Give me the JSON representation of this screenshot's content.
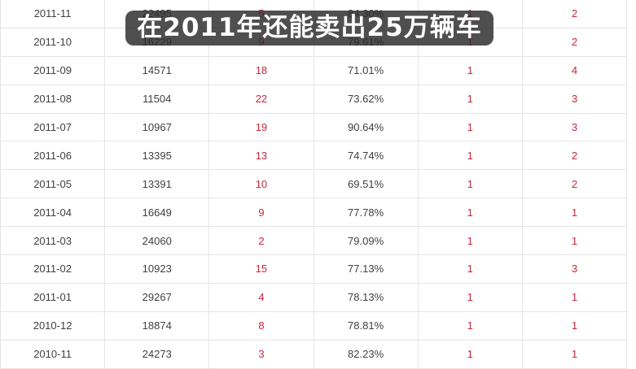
{
  "banner": {
    "text": "在2011年还能卖出25万辆车",
    "bg_color": "rgba(40,40,40,0.82)",
    "text_color": "#ffffff"
  },
  "colors": {
    "accent_red": "#c5283c",
    "text_dark": "#404040",
    "grid_line": "#e5e5e5"
  },
  "table": {
    "rows": [
      [
        "2011-11",
        "22495",
        "5",
        "84.30%",
        "1",
        "2"
      ],
      [
        "2011-10",
        "16229",
        "9",
        "79.61%",
        "1",
        "2"
      ],
      [
        "2011-09",
        "14571",
        "18",
        "71.01%",
        "1",
        "4"
      ],
      [
        "2011-08",
        "11504",
        "22",
        "73.62%",
        "1",
        "3"
      ],
      [
        "2011-07",
        "10967",
        "19",
        "90.64%",
        "1",
        "3"
      ],
      [
        "2011-06",
        "13395",
        "13",
        "74.74%",
        "1",
        "2"
      ],
      [
        "2011-05",
        "13391",
        "10",
        "69.51%",
        "1",
        "2"
      ],
      [
        "2011-04",
        "16649",
        "9",
        "77.78%",
        "1",
        "1"
      ],
      [
        "2011-03",
        "24060",
        "2",
        "79.09%",
        "1",
        "1"
      ],
      [
        "2011-02",
        "10923",
        "15",
        "77.13%",
        "1",
        "3"
      ],
      [
        "2011-01",
        "29267",
        "4",
        "78.13%",
        "1",
        "1"
      ],
      [
        "2010-12",
        "18874",
        "8",
        "78.81%",
        "1",
        "1"
      ],
      [
        "2010-11",
        "24273",
        "3",
        "82.23%",
        "1",
        "1"
      ]
    ]
  }
}
